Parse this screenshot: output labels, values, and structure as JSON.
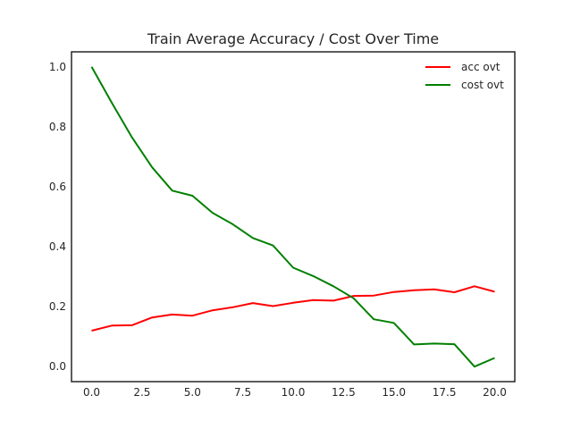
{
  "chart_data": {
    "type": "line",
    "title": "Train Average Accuracy / Cost Over Time",
    "xlabel": "",
    "ylabel": "",
    "xlim": [
      -1.0,
      21.0
    ],
    "ylim": [
      -0.05,
      1.05
    ],
    "x_ticks": [
      0.0,
      2.5,
      5.0,
      7.5,
      10.0,
      12.5,
      15.0,
      17.5,
      20.0
    ],
    "x_tick_labels": [
      "0.0",
      "2.5",
      "5.0",
      "7.5",
      "10.0",
      "12.5",
      "15.0",
      "17.5",
      "20.0"
    ],
    "y_ticks": [
      0.0,
      0.2,
      0.4,
      0.6,
      0.8,
      1.0
    ],
    "y_tick_labels": [
      "0.0",
      "0.2",
      "0.4",
      "0.6",
      "0.8",
      "1.0"
    ],
    "grid": false,
    "legend_position": "top-right",
    "x": [
      0,
      1,
      2,
      3,
      4,
      5,
      6,
      7,
      8,
      9,
      10,
      11,
      12,
      13,
      14,
      15,
      16,
      17,
      18,
      19,
      20
    ],
    "series": [
      {
        "name": "acc ovt",
        "color": "#ff0000",
        "values": [
          0.12,
          0.137,
          0.138,
          0.164,
          0.174,
          0.17,
          0.188,
          0.198,
          0.212,
          0.202,
          0.213,
          0.222,
          0.22,
          0.236,
          0.237,
          0.249,
          0.255,
          0.258,
          0.248,
          0.268,
          0.25
        ]
      },
      {
        "name": "cost ovt",
        "color": "#008000",
        "values": [
          1.0,
          0.88,
          0.765,
          0.665,
          0.587,
          0.57,
          0.513,
          0.475,
          0.429,
          0.404,
          0.33,
          0.302,
          0.268,
          0.228,
          0.158,
          0.146,
          0.074,
          0.077,
          0.075,
          0.0,
          0.029
        ]
      }
    ]
  }
}
